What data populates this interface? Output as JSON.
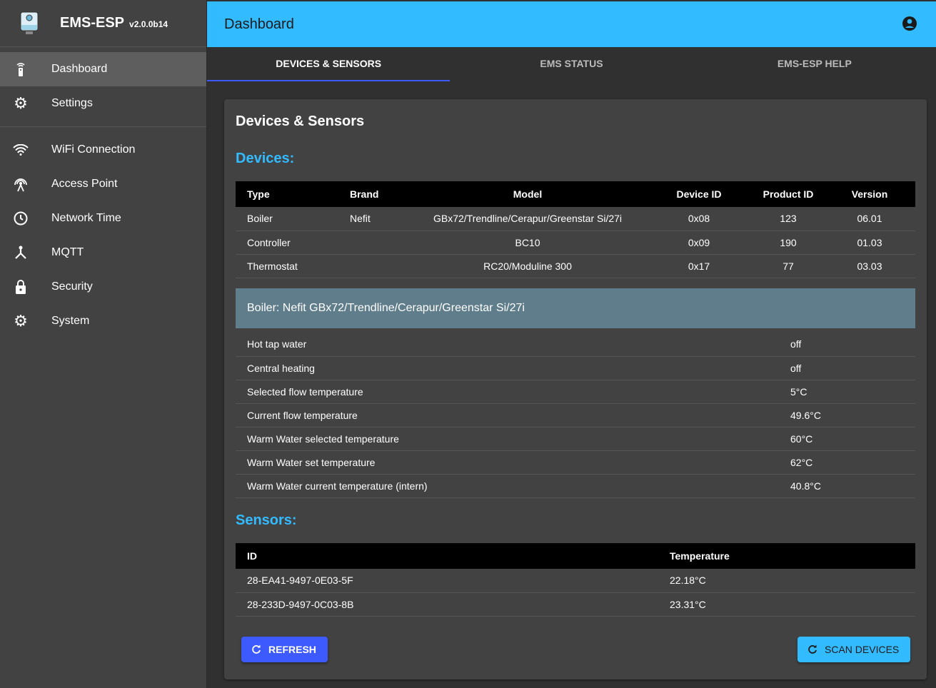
{
  "app": {
    "name": "EMS-ESP",
    "version": "v2.0.0b14"
  },
  "sidebar": {
    "items": [
      {
        "label": "Dashboard",
        "icon": "settings-remote-icon",
        "active": true
      },
      {
        "label": "Settings",
        "icon": "gear-icon"
      },
      {
        "label": "WiFi Connection",
        "icon": "wifi-icon"
      },
      {
        "label": "Access Point",
        "icon": "access-point-icon"
      },
      {
        "label": "Network Time",
        "icon": "clock-icon"
      },
      {
        "label": "MQTT",
        "icon": "device-hub-icon"
      },
      {
        "label": "Security",
        "icon": "lock-icon"
      },
      {
        "label": "System",
        "icon": "gear-icon"
      }
    ]
  },
  "header": {
    "title": "Dashboard"
  },
  "tabs": [
    {
      "label": "DEVICES & SENSORS",
      "active": true
    },
    {
      "label": "EMS STATUS"
    },
    {
      "label": "EMS-ESP HELP"
    }
  ],
  "card": {
    "title": "Devices & Sensors",
    "devices_heading": "Devices:",
    "sensors_heading": "Sensors:"
  },
  "devices": {
    "columns": [
      "Type",
      "Brand",
      "Model",
      "Device ID",
      "Product ID",
      "Version"
    ],
    "rows": [
      [
        "Boiler",
        "Nefit",
        "GBx72/Trendline/Cerapur/Greenstar Si/27i",
        "0x08",
        "123",
        "06.01"
      ],
      [
        "Controller",
        "",
        "BC10",
        "0x09",
        "190",
        "01.03"
      ],
      [
        "Thermostat",
        "",
        "RC20/Moduline 300",
        "0x17",
        "77",
        "03.03"
      ]
    ]
  },
  "boiler": {
    "title": "Boiler: Nefit GBx72/Trendline/Cerapur/Greenstar Si/27i",
    "rows": [
      [
        "Hot tap water",
        "off"
      ],
      [
        "Central heating",
        "off"
      ],
      [
        "Selected flow temperature",
        "5°C"
      ],
      [
        "Current flow temperature",
        "49.6°C"
      ],
      [
        "Warm Water selected temperature",
        "60°C"
      ],
      [
        "Warm Water set temperature",
        "62°C"
      ],
      [
        "Warm Water current temperature (intern)",
        "40.8°C"
      ]
    ]
  },
  "sensors": {
    "columns": [
      "ID",
      "Temperature"
    ],
    "rows": [
      [
        "28-EA41-9497-0E03-5F",
        "22.18°C"
      ],
      [
        "28-233D-9497-0C03-8B",
        "23.31°C"
      ]
    ]
  },
  "buttons": {
    "refresh": "REFRESH",
    "scan": "SCAN DEVICES"
  },
  "colors": {
    "header": "#33bbff",
    "primary": "#3d5afe",
    "boiler_bar": "#607d8b"
  }
}
